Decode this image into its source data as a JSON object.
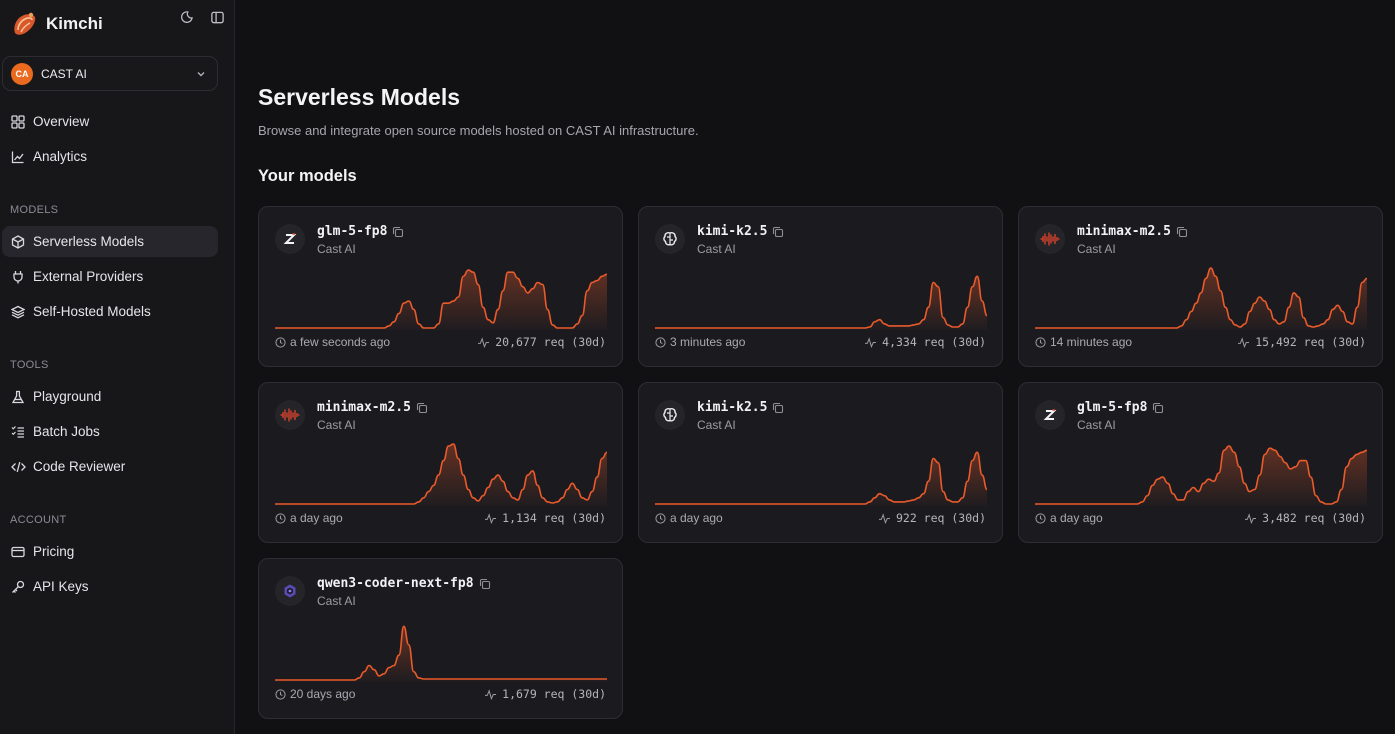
{
  "app": {
    "name": "Kimchi"
  },
  "org": {
    "initials": "CA",
    "name": "CAST AI"
  },
  "nav": {
    "top": [
      {
        "label": "Overview",
        "icon": "grid-icon"
      },
      {
        "label": "Analytics",
        "icon": "chart-line-icon"
      }
    ],
    "sections": [
      {
        "title": "MODELS",
        "items": [
          {
            "label": "Serverless Models",
            "icon": "cube-icon",
            "active": true
          },
          {
            "label": "External Providers",
            "icon": "plug-icon"
          },
          {
            "label": "Self-Hosted Models",
            "icon": "layers-icon"
          }
        ]
      },
      {
        "title": "TOOLS",
        "items": [
          {
            "label": "Playground",
            "icon": "flask-icon"
          },
          {
            "label": "Batch Jobs",
            "icon": "list-check-icon"
          },
          {
            "label": "Code Reviewer",
            "icon": "code-icon"
          }
        ]
      },
      {
        "title": "ACCOUNT",
        "items": [
          {
            "label": "Pricing",
            "icon": "credit-card-icon"
          },
          {
            "label": "API Keys",
            "icon": "key-icon"
          }
        ]
      }
    ]
  },
  "page": {
    "title": "Serverless Models",
    "subtitle": "Browse and integrate open source models hosted on CAST AI infrastructure.",
    "section_title": "Your models"
  },
  "colors": {
    "accent": "#ea5a2b",
    "org_avatar": "#ea6a1f",
    "background": "#111114",
    "card": "#1b1b1f"
  },
  "models": [
    {
      "name": "glm-5-fp8",
      "provider": "Cast AI",
      "icon": "zhipu-z-icon",
      "time": "a few seconds ago",
      "requests": "20,677 req (30d)",
      "usage": [
        0,
        0,
        0,
        0,
        0,
        0,
        0,
        0,
        0,
        0,
        0,
        0,
        0,
        0,
        0,
        0,
        0,
        0,
        0,
        0,
        0,
        0,
        0,
        2,
        6,
        14,
        24,
        26,
        18,
        4,
        0,
        0,
        0,
        4,
        24,
        24,
        26,
        30,
        50,
        56,
        54,
        42,
        20,
        8,
        5,
        18,
        36,
        54,
        54,
        48,
        40,
        34,
        38,
        44,
        42,
        18,
        3,
        0,
        0,
        0,
        0,
        4,
        12,
        36,
        44,
        46,
        50,
        52
      ]
    },
    {
      "name": "kimi-k2.5",
      "provider": "Cast AI",
      "icon": "brain-icon",
      "time": "3 minutes ago",
      "requests": "4,334 req (30d)",
      "usage": [
        0,
        0,
        0,
        0,
        0,
        0,
        0,
        0,
        0,
        0,
        0,
        0,
        0,
        0,
        0,
        0,
        0,
        0,
        0,
        0,
        0,
        0,
        0,
        0,
        0,
        0,
        0,
        0,
        0,
        0,
        0,
        0,
        0,
        0,
        0,
        0,
        0,
        0,
        0,
        0,
        0,
        0,
        0,
        0,
        1,
        6,
        8,
        4,
        2,
        2,
        2,
        2,
        2,
        3,
        4,
        8,
        20,
        44,
        40,
        10,
        3,
        1,
        1,
        4,
        20,
        40,
        50,
        26,
        12
      ]
    },
    {
      "name": "minimax-m2.5",
      "provider": "Cast AI",
      "icon": "waveform-icon",
      "time": "14 minutes ago",
      "requests": "15,492 req (30d)",
      "usage": [
        0,
        0,
        0,
        0,
        0,
        0,
        0,
        0,
        0,
        0,
        0,
        0,
        0,
        0,
        0,
        0,
        0,
        0,
        0,
        0,
        0,
        0,
        0,
        0,
        0,
        0,
        0,
        0,
        0,
        0,
        2,
        8,
        16,
        24,
        34,
        48,
        58,
        50,
        36,
        20,
        8,
        3,
        1,
        4,
        16,
        24,
        30,
        26,
        18,
        8,
        4,
        6,
        20,
        34,
        30,
        10,
        2,
        1,
        2,
        4,
        8,
        18,
        22,
        16,
        6,
        4,
        20,
        44,
        48
      ]
    },
    {
      "name": "minimax-m2.5",
      "provider": "Cast AI",
      "icon": "waveform-icon",
      "time": "a day ago",
      "requests": "1,134 req (30d)",
      "usage": [
        0,
        0,
        0,
        0,
        0,
        0,
        0,
        0,
        0,
        0,
        0,
        0,
        0,
        0,
        0,
        0,
        0,
        0,
        0,
        0,
        0,
        0,
        0,
        0,
        0,
        0,
        0,
        0,
        0,
        2,
        6,
        12,
        18,
        28,
        42,
        56,
        58,
        44,
        28,
        14,
        6,
        3,
        8,
        16,
        24,
        28,
        22,
        12,
        6,
        4,
        14,
        28,
        32,
        18,
        6,
        2,
        1,
        2,
        6,
        14,
        20,
        14,
        6,
        4,
        12,
        26,
        44,
        50
      ]
    },
    {
      "name": "kimi-k2.5",
      "provider": "Cast AI",
      "icon": "brain-icon",
      "time": "a day ago",
      "requests": "922 req (30d)",
      "usage": [
        0,
        0,
        0,
        0,
        0,
        0,
        0,
        0,
        0,
        0,
        0,
        0,
        0,
        0,
        0,
        0,
        0,
        0,
        0,
        0,
        0,
        0,
        0,
        0,
        0,
        0,
        0,
        0,
        0,
        0,
        0,
        0,
        0,
        0,
        0,
        0,
        0,
        0,
        0,
        0,
        0,
        0,
        0,
        0,
        2,
        6,
        10,
        8,
        4,
        2,
        2,
        2,
        3,
        4,
        6,
        10,
        22,
        44,
        40,
        12,
        4,
        2,
        2,
        6,
        22,
        42,
        50,
        28,
        14
      ]
    },
    {
      "name": "glm-5-fp8",
      "provider": "Cast AI",
      "icon": "zhipu-z-icon",
      "time": "a day ago",
      "requests": "3,482 req (30d)",
      "usage": [
        0,
        0,
        0,
        0,
        0,
        0,
        0,
        0,
        0,
        0,
        0,
        0,
        0,
        0,
        0,
        0,
        0,
        0,
        0,
        0,
        0,
        2,
        8,
        18,
        24,
        26,
        20,
        10,
        4,
        4,
        12,
        16,
        12,
        20,
        24,
        22,
        30,
        52,
        56,
        50,
        36,
        20,
        12,
        14,
        28,
        48,
        54,
        52,
        46,
        40,
        34,
        36,
        42,
        42,
        26,
        8,
        2,
        0,
        0,
        2,
        14,
        36,
        44,
        48,
        50,
        52
      ]
    },
    {
      "name": "qwen3-coder-next-fp8",
      "provider": "Cast AI",
      "icon": "qwen-icon",
      "time": "20 days ago",
      "requests": "1,679 req (30d)",
      "usage": [
        0,
        0,
        0,
        0,
        0,
        0,
        0,
        0,
        0,
        0,
        0,
        0,
        0,
        0,
        0,
        0,
        0,
        2,
        8,
        14,
        10,
        4,
        6,
        12,
        14,
        24,
        52,
        34,
        8,
        2,
        1,
        1,
        1,
        1,
        1,
        1,
        1,
        1,
        1,
        1,
        1,
        1,
        1,
        1,
        1,
        1,
        1,
        1,
        1,
        1,
        1,
        1,
        1,
        1,
        1,
        1,
        1,
        1,
        1,
        1,
        1,
        1,
        1,
        1,
        1,
        1,
        1,
        1
      ]
    }
  ]
}
